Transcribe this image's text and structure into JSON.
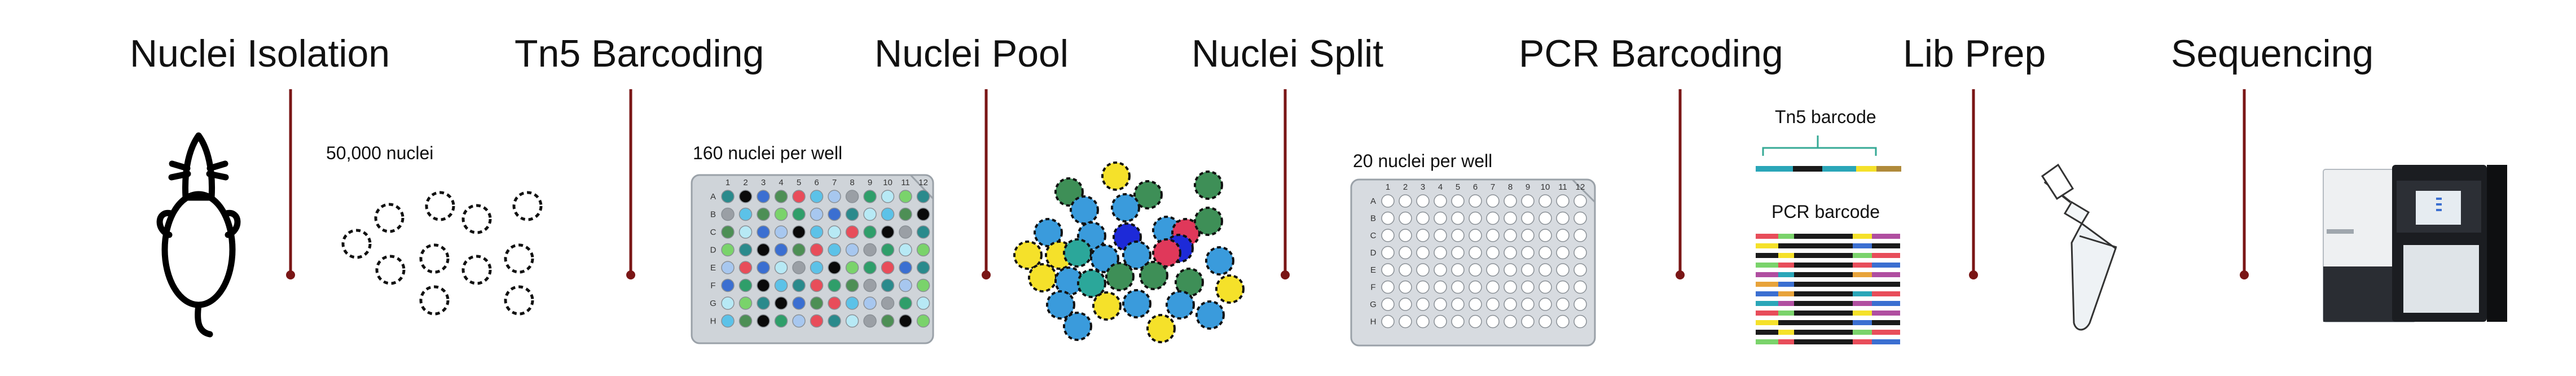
{
  "steps": [
    {
      "title": "Nuclei Isolation"
    },
    {
      "title": "Tn5 Barcoding"
    },
    {
      "title": "Nuclei Pool"
    },
    {
      "title": "Nuclei Split"
    },
    {
      "title": "PCR Barcoding"
    },
    {
      "title": "Lib Prep"
    },
    {
      "title": "Sequencing"
    }
  ],
  "labels": {
    "nuclei_count": "50,000 nuclei",
    "tn5_per_well": "160 nuclei per well",
    "split_per_well": "20 nuclei per well",
    "tn5_barcode": "Tn5 barcode",
    "pcr_barcode": "PCR barcode"
  },
  "plate": {
    "rows": [
      "A",
      "B",
      "C",
      "D",
      "E",
      "F",
      "G",
      "H"
    ],
    "cols": [
      "1",
      "2",
      "3",
      "4",
      "5",
      "6",
      "7",
      "8",
      "9",
      "10",
      "11",
      "12"
    ]
  },
  "colors": {
    "timeline_line": "#7a1616",
    "plate_body": "#cfd4d9",
    "tn5_palette": [
      "#2a8a8c",
      "#2f9e6a",
      "#5cc2e8",
      "#3b6fd1",
      "#7ad36b",
      "#9a9fa5",
      "#e84d5a",
      "#0a0a0a",
      "#b7e9f5",
      "#a7c7ef",
      "#4d8f55"
    ],
    "pool_palette": [
      "#f5e12a",
      "#3a9bdc",
      "#3e8f57",
      "#1d2ad8",
      "#e0385a",
      "#2ba79a"
    ],
    "barcode_palette": [
      "#e8a33a",
      "#e84d5a",
      "#7ad36b",
      "#3b6fd1",
      "#f5e12a",
      "#b04ea0",
      "#2aa6b8",
      "#1a1a1a"
    ]
  }
}
